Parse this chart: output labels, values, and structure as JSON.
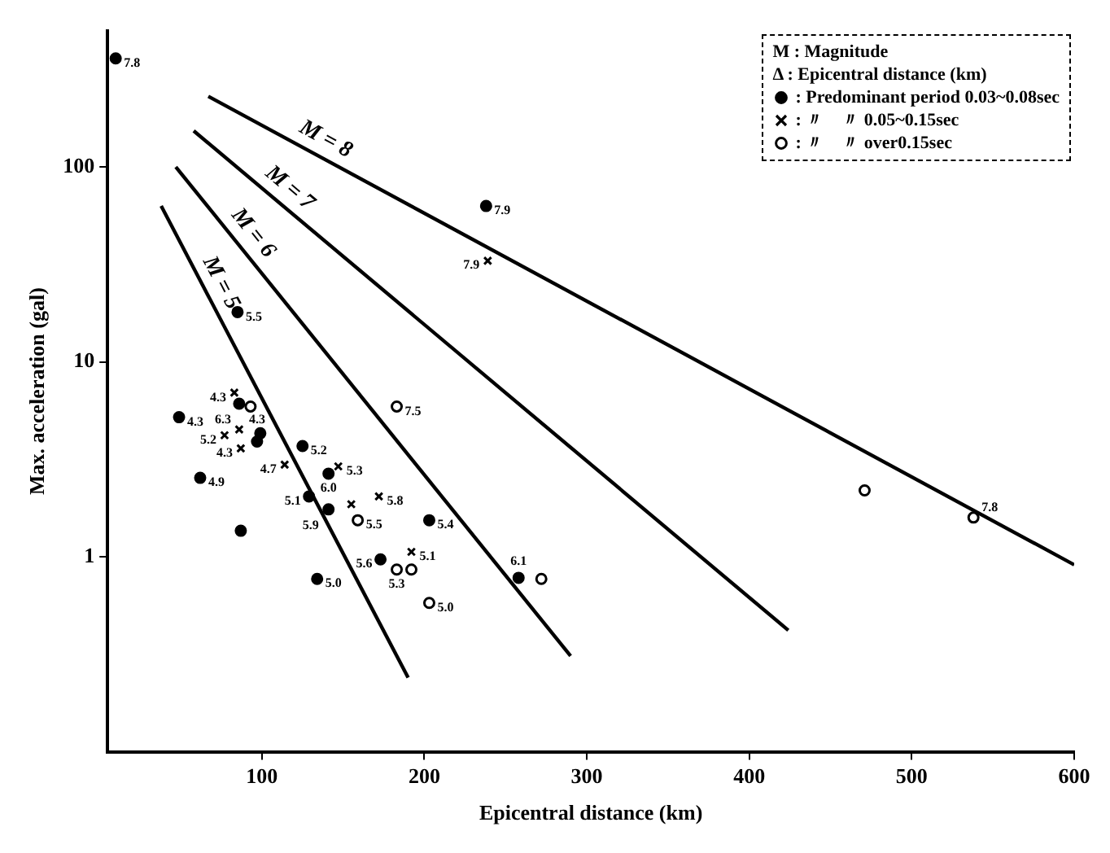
{
  "chart_data": {
    "type": "scatter",
    "xlabel": "Epicentral distance (km)",
    "ylabel": "Max. acceleration (gal)",
    "xlim": [
      5,
      600
    ],
    "xticks": [
      100,
      200,
      300,
      400,
      500,
      600
    ],
    "ylim": [
      0.1,
      500
    ],
    "yticks": [
      1,
      10,
      100
    ],
    "log": "y",
    "grid": false,
    "legend": "top right",
    "annotations": [
      "M : Magnitude",
      "Δ : Epicentral distance (km)",
      {
        "text": "M = 8",
        "x": 134,
        "y": 115
      },
      {
        "text": "M = 7",
        "x": 110,
        "y": 66
      },
      {
        "text": "M = 6",
        "x": 86,
        "y": 40
      },
      {
        "text": "M = 5",
        "x": 65,
        "y": 23
      },
      {
        "text": "7.8",
        "x": 10,
        "y": 360
      },
      {
        "text": "7.9",
        "x": 238,
        "y": 63
      },
      {
        "text": "7.9",
        "x": 239,
        "y": 33
      },
      {
        "text": "5.5",
        "x": 85,
        "y": 18
      },
      {
        "text": "4.3",
        "x": 83,
        "y": 6.95
      },
      {
        "text": "4.3",
        "x": 49,
        "y": 5.2
      },
      {
        "text": "4.3",
        "x": 86,
        "y": 6.1
      },
      {
        "text": "6.3",
        "x": 86,
        "y": 4.5
      },
      {
        "text": "5.2",
        "x": 77,
        "y": 4.2
      },
      {
        "text": "4.3",
        "x": 87,
        "y": 3.6
      },
      {
        "text": "4.7",
        "x": 114,
        "y": 2.97
      },
      {
        "text": "5.1",
        "x": 129,
        "y": 2.04
      },
      {
        "text": "4.9",
        "x": 62,
        "y": 2.54
      },
      {
        "text": "5.2",
        "x": 125,
        "y": 3.7
      },
      {
        "text": "5.3",
        "x": 147,
        "y": 2.91
      },
      {
        "text": "6.0",
        "x": 141,
        "y": 2.67
      },
      {
        "text": "5.8",
        "x": 172,
        "y": 2.04
      },
      {
        "text": "5.9",
        "x": 141,
        "y": 1.75
      },
      {
        "text": "5.5",
        "x": 159,
        "y": 1.54
      },
      {
        "text": "5.4",
        "x": 203,
        "y": 1.54
      },
      {
        "text": "5.6",
        "x": 173,
        "y": 0.97
      },
      {
        "text": "5.1",
        "x": 192,
        "y": 1.06
      },
      {
        "text": "5.3",
        "x": 183,
        "y": 0.86
      },
      {
        "text": "5.0",
        "x": 134,
        "y": 0.77
      },
      {
        "text": "5.0",
        "x": 203,
        "y": 0.58
      },
      {
        "text": "7.5",
        "x": 183,
        "y": 5.9
      },
      {
        "text": "6.1",
        "x": 258,
        "y": 0.78
      },
      {
        "text": "7.8",
        "x": 538,
        "y": 1.59
      }
    ],
    "series": [
      {
        "type": "line",
        "color": "#000000",
        "x": [
          67,
          600
        ],
        "values": [
          230,
          0.91
        ]
      },
      {
        "type": "line",
        "color": "#000000",
        "x": [
          58,
          424
        ],
        "values": [
          153,
          0.42
        ]
      },
      {
        "type": "line",
        "color": "#000000",
        "x": [
          47,
          290
        ],
        "values": [
          100,
          0.31
        ]
      },
      {
        "type": "line",
        "color": "#000000",
        "x": [
          38,
          190
        ],
        "values": [
          63,
          0.24
        ]
      },
      {
        "name": ": Predominant period 0.03~0.08sec",
        "color": "#000000",
        "marker": "circle",
        "x": [
          10,
          238,
          85,
          49,
          86,
          99,
          97,
          125,
          62,
          87,
          141,
          129,
          141,
          173,
          203,
          134,
          258
        ],
        "values": [
          360,
          63,
          18,
          5.2,
          6.1,
          4.3,
          3.9,
          3.7,
          2.54,
          1.36,
          2.67,
          2.04,
          1.75,
          0.97,
          1.54,
          0.77,
          0.78
        ]
      },
      {
        "name": ": 〃　〃 0.05~0.15sec",
        "color": "#000000",
        "marker": "cross",
        "x": [
          239,
          83,
          86,
          77,
          87,
          114,
          147,
          155,
          172,
          192
        ],
        "values": [
          33,
          6.95,
          4.5,
          4.2,
          3.6,
          2.97,
          2.91,
          1.86,
          2.04,
          1.06
        ]
      },
      {
        "name": ": 〃　〃 over0.15sec",
        "color": "#ffffff",
        "marker": "circle",
        "x": [
          93,
          183,
          159,
          183,
          192,
          203,
          272,
          471,
          538
        ],
        "values": [
          5.9,
          5.9,
          1.54,
          0.86,
          0.86,
          0.58,
          0.77,
          2.19,
          1.59
        ]
      }
    ]
  }
}
